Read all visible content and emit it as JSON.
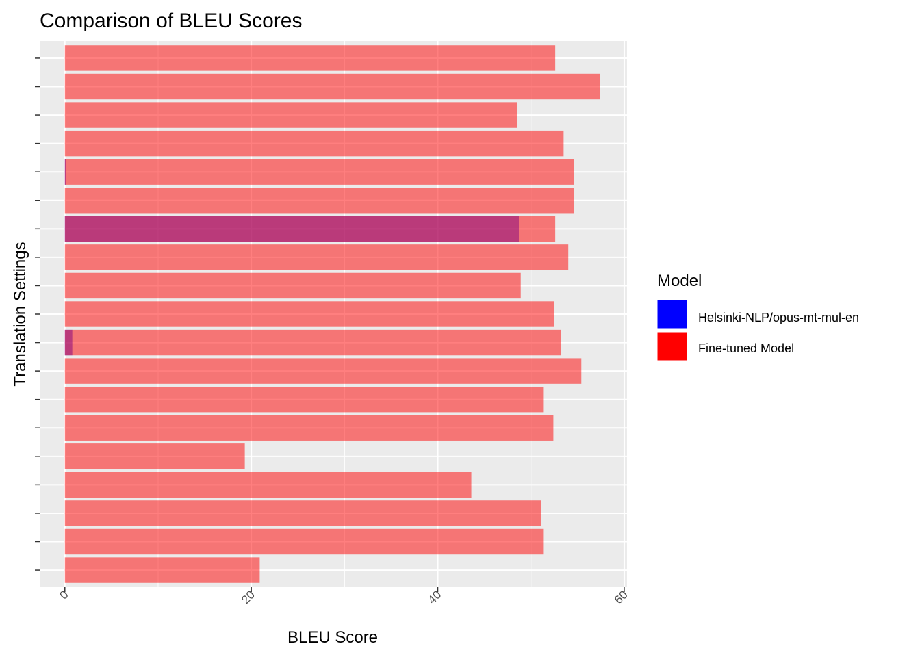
{
  "chart_data": {
    "type": "bar",
    "orientation": "horizontal",
    "title": "Comparison of BLEU Scores",
    "xlabel": "BLEU Score",
    "ylabel": "Translation Settings",
    "xlim": [
      -2.7,
      60.3
    ],
    "xticks": [
      0,
      20,
      40,
      60
    ],
    "xtick_labels": [
      "0",
      "20",
      "40",
      "60"
    ],
    "grid": true,
    "legend": {
      "title": "Model",
      "placement": "right",
      "entries": [
        {
          "name": "Helsinki-NLP/opus-mt-mul-en",
          "color": "#0000ff"
        },
        {
          "name": "Fine-tuned Model",
          "color": "#ff0000"
        }
      ]
    },
    "series": [
      {
        "name": "Helsinki-NLP/opus-mt-mul-en",
        "color": "#0000ff",
        "opacity": 0.5,
        "values": [
          0,
          0,
          0,
          0,
          0.1,
          0,
          48.7,
          0,
          0,
          0,
          0.8,
          0,
          0,
          0,
          0,
          0,
          0,
          0,
          0
        ]
      },
      {
        "name": "Fine-tuned Model",
        "color": "#ff0000",
        "opacity": 0.5,
        "values": [
          52.6,
          57.4,
          48.5,
          53.5,
          54.6,
          54.6,
          52.6,
          54.0,
          48.9,
          52.5,
          53.2,
          55.4,
          51.3,
          52.4,
          19.3,
          43.6,
          51.1,
          51.3,
          20.9
        ]
      }
    ]
  }
}
